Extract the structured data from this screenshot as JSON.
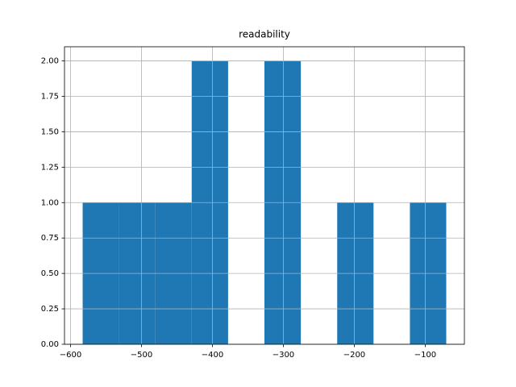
{
  "chart_data": {
    "type": "histogram",
    "title": "readability",
    "bins": [
      -582.9,
      -531.7,
      -480.4,
      -429.2,
      -377.9,
      -326.7,
      -275.4,
      -224.1,
      -172.9,
      -121.6,
      -70.4
    ],
    "values": [
      1,
      1,
      1,
      2,
      0,
      2,
      0,
      1,
      0,
      1
    ],
    "color": "#1f77b4",
    "xlim": [
      -608.5,
      -44.8
    ],
    "xticks": [
      {
        "value": -600,
        "label": "−600"
      },
      {
        "value": -500,
        "label": "−500"
      },
      {
        "value": -400,
        "label": "−400"
      },
      {
        "value": -300,
        "label": "−300"
      },
      {
        "value": -200,
        "label": "−200"
      },
      {
        "value": -100,
        "label": "−100"
      }
    ],
    "ylim": [
      0,
      2.1
    ],
    "yticks": [
      {
        "value": 0,
        "label": "0.00"
      },
      {
        "value": 0.25,
        "label": "0.25"
      },
      {
        "value": 0.5,
        "label": "0.50"
      },
      {
        "value": 0.75,
        "label": "0.75"
      },
      {
        "value": 1,
        "label": "1.00"
      },
      {
        "value": 1.25,
        "label": "1.25"
      },
      {
        "value": 1.5,
        "label": "1.50"
      },
      {
        "value": 1.75,
        "label": "1.75"
      },
      {
        "value": 2,
        "label": "2.00"
      }
    ],
    "grid": true
  }
}
